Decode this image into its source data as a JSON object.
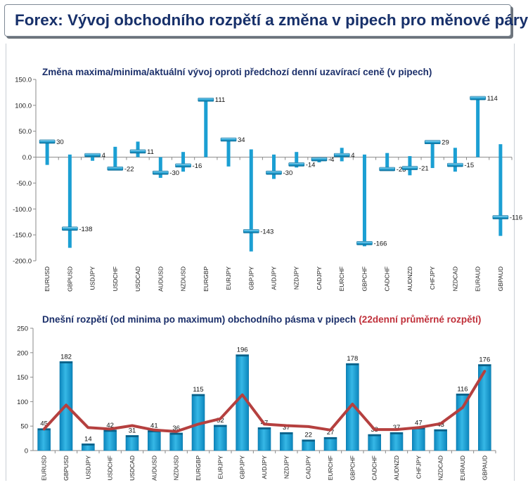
{
  "page_title": "Forex: Vývoj obchodního rozpětí a změna v pipech pro měnové páry",
  "colors": {
    "bar": "#1ea6d8",
    "bar_dark": "#0b7fb0",
    "line": "#b5403f",
    "title": "#17306a"
  },
  "chart_data": [
    {
      "type": "bar",
      "title": "Změna maxima/minima/aktuální vývoj oproti předchozí denní uzavírací ceně (v pipech)",
      "categories": [
        "EURUSD",
        "GBPUSD",
        "USDJPY",
        "USDCHF",
        "USDCAD",
        "AUDUSD",
        "NZDUSD",
        "EURGBP",
        "EURJPY",
        "GBPJPY",
        "AUDJPY",
        "NZDJPY",
        "CADJPY",
        "EURCHF",
        "GBPCHF",
        "CADCHF",
        "AUDNZD",
        "CHFJPY",
        "NZDCAD",
        "EURAUD",
        "GBPAUD"
      ],
      "high": [
        30,
        5,
        6,
        20,
        30,
        0,
        10,
        111,
        35,
        15,
        5,
        10,
        0,
        18,
        5,
        8,
        2,
        30,
        18,
        114,
        25
      ],
      "low": [
        -15,
        -175,
        -7,
        -22,
        0,
        -40,
        -28,
        0,
        -18,
        -182,
        -42,
        -20,
        -10,
        -8,
        -172,
        -25,
        -35,
        -21,
        -28,
        0,
        -152
      ],
      "current": [
        30,
        -138,
        4,
        -22,
        11,
        -30,
        -16,
        111,
        34,
        -143,
        -30,
        -14,
        -4,
        4,
        -166,
        -23,
        -21,
        29,
        -15,
        114,
        -116
      ],
      "current_labels": [
        "30",
        "-138",
        "4",
        "-22",
        "11",
        "-30",
        "-16",
        "111",
        "34",
        "-143",
        "-30",
        "-14",
        "-4",
        "4",
        "-166",
        "-23",
        "-21",
        "29",
        "-15",
        "114",
        "-116"
      ],
      "yticks": [
        "150.0",
        "100.0",
        "50.0",
        "0.0",
        "-50.0",
        "-100.0",
        "-150.0",
        "-200.0"
      ],
      "ylim": [
        -200,
        150
      ],
      "grid": false,
      "legend": "none"
    },
    {
      "type": "bar",
      "title": "Dnešní rozpětí (od minima po maximum) obchodního pásma v pipech",
      "title_red": "(22denní průměrné rozpětí)",
      "categories": [
        "EURUSD",
        "GBPUSD",
        "USDJPY",
        "USDCHF",
        "USDCAD",
        "AUDUSD",
        "NZDUSD",
        "EURGBP",
        "EURJPY",
        "GBPJPY",
        "AUDJPY",
        "NZDJPY",
        "CADJPY",
        "EURCHF",
        "GBPCHF",
        "CADCHF",
        "AUDNZD",
        "CHFJPY",
        "NZDCAD",
        "EURAUD",
        "GBPAUD"
      ],
      "values": [
        45,
        182,
        14,
        42,
        31,
        41,
        36,
        115,
        52,
        196,
        47,
        37,
        22,
        27,
        178,
        33,
        37,
        47,
        43,
        116,
        176
      ],
      "value_labels": [
        "45",
        "182",
        "14",
        "42",
        "31",
        "41",
        "36",
        "115",
        "52",
        "196",
        "47",
        "37",
        "22",
        "27",
        "178",
        "33",
        "37",
        "47",
        "43",
        "116",
        "176"
      ],
      "average_line": [
        44,
        93,
        47,
        44,
        51,
        42,
        39,
        54,
        65,
        114,
        54,
        51,
        49,
        42,
        95,
        43,
        43,
        47,
        55,
        88,
        162
      ],
      "yticks": [
        "250",
        "200",
        "150",
        "100",
        "50",
        "0"
      ],
      "ylim": [
        0,
        250
      ],
      "grid": false,
      "legend": "none"
    }
  ]
}
